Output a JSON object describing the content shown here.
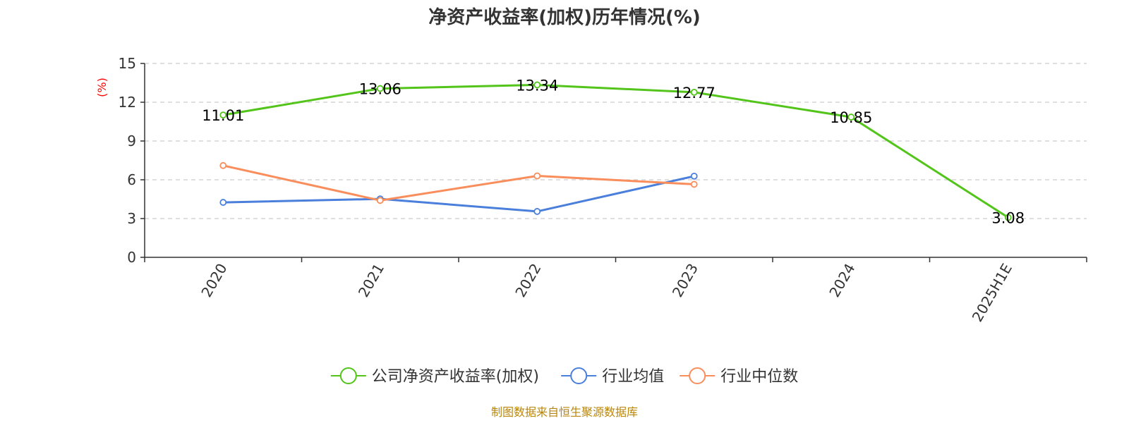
{
  "chart_data": {
    "type": "line",
    "title": "净资产收益率(加权)历年情况(%)",
    "ylabel": "(%)",
    "xlabel": "",
    "categories": [
      "2020",
      "2021",
      "2022",
      "2023",
      "2024",
      "2025H1E"
    ],
    "ylim": [
      0,
      15
    ],
    "yticks": [
      0,
      3,
      6,
      9,
      12,
      15
    ],
    "grid": "horizontal-dashed",
    "legend_position": "bottom-center",
    "series": [
      {
        "name": "公司净资产收益率(加权)",
        "color": "#52c41a",
        "values": [
          11.01,
          13.06,
          13.34,
          12.77,
          10.85,
          3.08
        ],
        "labels": [
          "11.01",
          "13.06",
          "13.34",
          "12.77",
          "10.85",
          "3.08"
        ]
      },
      {
        "name": "行业均值",
        "color": "#4a7fdb",
        "values": [
          4.25,
          4.52,
          3.55,
          6.28,
          null,
          null
        ]
      },
      {
        "name": "行业中位数",
        "color": "#f98e5c",
        "values": [
          7.1,
          4.4,
          6.3,
          5.65,
          null,
          null
        ]
      }
    ]
  },
  "source": "制图数据来自恒生聚源数据库"
}
